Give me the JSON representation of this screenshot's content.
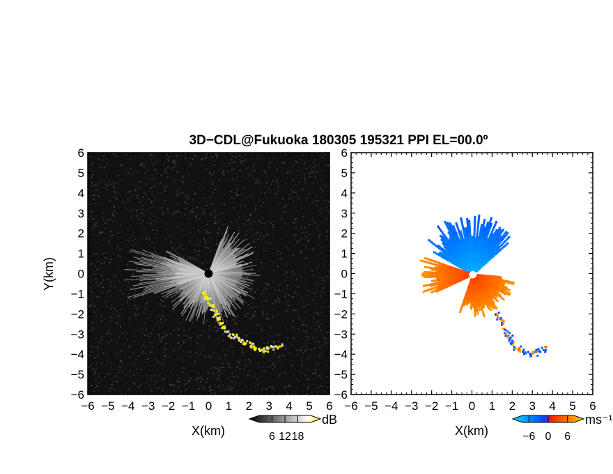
{
  "chart_data": {
    "type": "heatmap",
    "title": "3D−CDL@Fukuoka 180305 195321 PPI EL=00.0º",
    "panels": [
      {
        "field": "reflectivity",
        "xlabel": "X(km)",
        "ylabel": "Y(km)",
        "xlim": [
          -6,
          6
        ],
        "ylim": [
          -6,
          6
        ],
        "xticks": [
          "−6",
          "−5",
          "−4",
          "−3",
          "−2",
          "−1",
          "0",
          "1",
          "2",
          "3",
          "4",
          "5",
          "6"
        ],
        "yticks": [
          "−6",
          "−5",
          "−4",
          "−3",
          "−2",
          "−1",
          "0",
          "1",
          "2",
          "3",
          "4",
          "5",
          "6"
        ],
        "colorbar": {
          "unit": "dB",
          "ticks": [
            "6",
            "12",
            "18"
          ],
          "range": [
            0,
            24
          ],
          "colors": [
            "#000000",
            "#ffffff",
            "#ffee00"
          ]
        },
        "background": "noise",
        "sectors": [
          {
            "az_from": 20,
            "az_to": 300,
            "r_max_km": 2.6,
            "intensity": 0.55
          },
          {
            "az_from": 250,
            "az_to": 290,
            "r_max_km": 4.6,
            "intensity": 0.45
          }
        ],
        "features": [
          {
            "name": "echo-tail",
            "color": "#ffee00",
            "points": [
              [
                -0.3,
                -0.9
              ],
              [
                0.2,
                -1.8
              ],
              [
                0.9,
                -2.9
              ],
              [
                1.8,
                -3.4
              ],
              [
                2.6,
                -3.8
              ],
              [
                3.6,
                -3.5
              ]
            ]
          }
        ]
      },
      {
        "field": "doppler-velocity",
        "xlabel": "X(km)",
        "ylabel": "",
        "xlim": [
          -6,
          6
        ],
        "ylim": [
          -6,
          6
        ],
        "xticks": [
          "−6",
          "−5",
          "−4",
          "−3",
          "−2",
          "−1",
          "0",
          "1",
          "2",
          "3",
          "4",
          "5",
          "6"
        ],
        "yticks": [
          "−6",
          "−5",
          "−4",
          "−3",
          "−2",
          "−1",
          "0",
          "1",
          "2",
          "3",
          "4",
          "5",
          "6"
        ],
        "colorbar": {
          "unit": "ms⁻¹",
          "ticks": [
            "−6",
            "0",
            "6"
          ],
          "range": [
            -8,
            8
          ],
          "colors": [
            "#00e0ff",
            "#0040ff",
            "#ff2000",
            "#ffd000"
          ]
        },
        "sectors": [
          {
            "az_from": 300,
            "az_to": 50,
            "r_max_km": 3.0,
            "v_min": -6,
            "v_max": -2
          },
          {
            "az_from": 95,
            "az_to": 200,
            "r_max_km": 2.2,
            "v_min": 2,
            "v_max": 6
          },
          {
            "az_from": 245,
            "az_to": 290,
            "r_max_km": 2.8,
            "v_min": 2,
            "v_max": 6
          }
        ],
        "features": [
          {
            "name": "velocity-tail",
            "points": [
              [
                1.2,
                -1.9
              ],
              [
                1.7,
                -2.9
              ],
              [
                2.1,
                -3.6
              ],
              [
                2.9,
                -4.0
              ],
              [
                3.7,
                -3.6
              ]
            ]
          }
        ]
      }
    ]
  }
}
